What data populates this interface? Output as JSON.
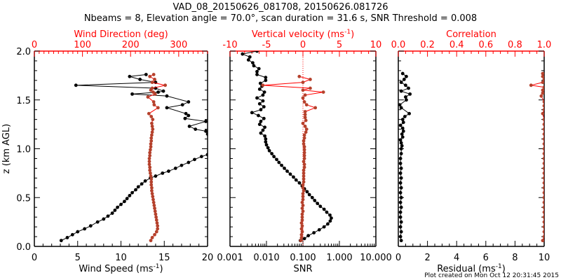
{
  "header": {
    "title": "VAD_08_20150626_081708, 20150626.081726",
    "subtitle": "Nbeams = 8, Elevation angle = 70.0°, scan duration = 31.6 s, SNR Threshold = 0.008"
  },
  "footer": {
    "created": "Plot created on Mon Oct 12 20:31:45 2015"
  },
  "colors": {
    "axis_red": "#ff0000",
    "series_red": "#b5412c",
    "series_black": "#000000"
  },
  "chart_data": [
    {
      "type": "line",
      "id": "wind",
      "title": "",
      "ylabel": "z (km AGL)",
      "ylim": [
        0,
        2.0
      ],
      "yticks": [
        "0.0",
        "0.5",
        "1.0",
        "1.5",
        "2.0"
      ],
      "xlabel": "Wind Speed (ms",
      "xlabel_sup": "-1",
      "xlabel_tail": ")",
      "xlim": [
        0,
        20
      ],
      "xticks": [
        "0",
        "5",
        "10",
        "15",
        "20"
      ],
      "top_xlabel": "Wind Direction (deg)",
      "top_xlim": [
        0,
        360
      ],
      "top_xticks": [
        "0",
        "100",
        "200",
        "300"
      ],
      "series": [
        {
          "name": "Wind Speed",
          "axis": "bottom",
          "color": "black",
          "z": [
            0.06,
            0.09,
            0.12,
            0.15,
            0.18,
            0.21,
            0.25,
            0.28,
            0.31,
            0.34,
            0.37,
            0.4,
            0.43,
            0.46,
            0.49,
            0.52,
            0.55,
            0.58,
            0.61,
            0.64,
            0.67,
            0.7,
            0.72,
            0.75,
            0.77,
            0.8,
            0.83,
            0.86,
            0.89,
            0.92,
            0.94,
            1.15,
            1.18,
            1.2,
            1.23,
            1.28,
            1.31,
            1.34,
            1.36,
            1.42,
            1.45,
            1.48,
            1.54,
            1.56,
            1.58,
            1.59,
            1.62,
            1.65,
            1.68,
            1.71,
            1.74,
            1.76
          ],
          "values": [
            3.1,
            3.8,
            4.4,
            5.0,
            5.8,
            6.5,
            7.3,
            8.0,
            8.5,
            9.0,
            9.3,
            9.6,
            10.0,
            10.4,
            10.7,
            11.0,
            11.3,
            11.7,
            12.0,
            12.4,
            12.8,
            13.4,
            14.0,
            14.8,
            15.5,
            16.3,
            17.0,
            17.8,
            18.5,
            19.3,
            20.0,
            20.0,
            19.8,
            18.6,
            17.9,
            19.8,
            17.4,
            17.8,
            17.5,
            15.3,
            17.1,
            17.8,
            15.3,
            11.3,
            14.3,
            14.9,
            14.0,
            4.8,
            14.0,
            12.2,
            11.0,
            12.9
          ]
        },
        {
          "name": "Wind Direction",
          "axis": "top",
          "color": "red",
          "z": [
            0.06,
            0.09,
            0.12,
            0.15,
            0.18,
            0.21,
            0.24,
            0.27,
            0.3,
            0.33,
            0.36,
            0.39,
            0.42,
            0.45,
            0.48,
            0.51,
            0.54,
            0.57,
            0.6,
            0.63,
            0.66,
            0.69,
            0.72,
            0.75,
            0.78,
            0.81,
            0.84,
            0.87,
            0.9,
            0.93,
            0.96,
            0.99,
            1.02,
            1.05,
            1.08,
            1.11,
            1.14,
            1.17,
            1.2,
            1.23,
            1.26,
            1.3,
            1.33,
            1.36,
            1.42,
            1.45,
            1.48,
            1.53,
            1.56,
            1.58,
            1.6,
            1.62,
            1.65,
            1.68,
            1.71,
            1.74,
            1.76
          ],
          "values": [
            242,
            245,
            250,
            254,
            256,
            256,
            255,
            254,
            253,
            252,
            251,
            250,
            249,
            248,
            247,
            246,
            245,
            244,
            244,
            243,
            243,
            243,
            242,
            241,
            240,
            240,
            239,
            239,
            239,
            240,
            240,
            241,
            242,
            242,
            243,
            243,
            244,
            245,
            246,
            245,
            244,
            246,
            243,
            238,
            257,
            249,
            248,
            236,
            251,
            247,
            242,
            245,
            272,
            245,
            250,
            240,
            248
          ]
        }
      ]
    },
    {
      "type": "line",
      "id": "snr",
      "xlabel": "SNR",
      "xscale": "log",
      "xlim": [
        0.001,
        10.0
      ],
      "xticks": [
        "0.001",
        "0.010",
        "0.100",
        "1.000",
        "10.000"
      ],
      "top_xlabel": "Vertical velocity (ms",
      "top_xlabel_sup": "-1",
      "top_xlabel_tail": ")",
      "top_xlim": [
        -10,
        10
      ],
      "top_xticks": [
        "-10",
        "-5",
        "0",
        "5",
        "10"
      ],
      "ylim": [
        0,
        2.0
      ],
      "series": [
        {
          "name": "SNR",
          "axis": "bottom",
          "color": "black",
          "z": [
            0.06,
            0.08,
            0.11,
            0.14,
            0.17,
            0.2,
            0.23,
            0.26,
            0.29,
            0.32,
            0.35,
            0.38,
            0.41,
            0.44,
            0.47,
            0.5,
            0.53,
            0.56,
            0.59,
            0.62,
            0.65,
            0.68,
            0.71,
            0.74,
            0.77,
            0.8,
            0.83,
            0.86,
            0.89,
            0.92,
            0.95,
            0.98,
            1.01,
            1.04,
            1.07,
            1.1,
            1.13,
            1.16,
            1.19,
            1.22,
            1.25,
            1.28,
            1.31,
            1.34,
            1.37,
            1.4,
            1.43,
            1.46,
            1.49,
            1.52,
            1.55,
            1.58,
            1.61,
            1.64,
            1.67,
            1.7,
            1.73,
            1.76,
            1.79,
            1.82,
            1.85,
            1.88,
            1.91,
            1.94,
            1.97,
            2.0
          ],
          "values": [
            0.085,
            0.11,
            0.14,
            0.2,
            0.28,
            0.38,
            0.48,
            0.56,
            0.6,
            0.55,
            0.45,
            0.38,
            0.3,
            0.25,
            0.21,
            0.18,
            0.15,
            0.13,
            0.11,
            0.095,
            0.08,
            0.065,
            0.055,
            0.045,
            0.037,
            0.031,
            0.026,
            0.022,
            0.019,
            0.016,
            0.014,
            0.012,
            0.011,
            0.01,
            0.0095,
            0.0095,
            0.009,
            0.007,
            0.008,
            0.009,
            0.0065,
            0.007,
            0.0085,
            0.006,
            0.004,
            0.007,
            0.0085,
            0.0065,
            0.008,
            0.0055,
            0.008,
            0.0088,
            0.0065,
            0.0075,
            0.0068,
            0.0095,
            0.0095,
            0.0055,
            0.0055,
            0.0062,
            0.0045,
            0.0042,
            0.0032,
            0.0035,
            0.0022,
            0.0055
          ]
        },
        {
          "name": "Vertical velocity",
          "axis": "top",
          "color": "red",
          "z": [
            0.06,
            0.09,
            0.12,
            0.15,
            0.18,
            0.21,
            0.24,
            0.27,
            0.3,
            0.33,
            0.36,
            0.39,
            0.42,
            0.45,
            0.48,
            0.51,
            0.54,
            0.57,
            0.6,
            0.63,
            0.66,
            0.69,
            0.72,
            0.75,
            0.78,
            0.81,
            0.84,
            0.87,
            0.9,
            0.93,
            0.96,
            0.99,
            1.02,
            1.05,
            1.08,
            1.11,
            1.14,
            1.17,
            1.2,
            1.23,
            1.26,
            1.29,
            1.32,
            1.35,
            1.38,
            1.42,
            1.45,
            1.48,
            1.52,
            1.55,
            1.58,
            1.6,
            1.62,
            1.65,
            1.68,
            1.71,
            1.74
          ],
          "values": [
            -0.3,
            -0.2,
            -0.2,
            -0.1,
            -0.2,
            -0.1,
            -0.2,
            -0.1,
            -0.1,
            -0.1,
            0.0,
            -0.1,
            0.0,
            -0.1,
            0.0,
            0.0,
            0.0,
            0.1,
            0.0,
            0.0,
            0.1,
            0.1,
            0.1,
            0.1,
            0.1,
            0.2,
            0.2,
            0.1,
            0.2,
            0.2,
            0.2,
            0.2,
            0.2,
            0.1,
            0.1,
            0.2,
            0.2,
            0.4,
            0.5,
            0.3,
            0.0,
            0.4,
            0.3,
            0.3,
            0.3,
            1.7,
            0.5,
            0.2,
            0.0,
            0.3,
            2.8,
            0.0,
            1.0,
            -5.5,
            0.0,
            1.0,
            -0.5
          ]
        }
      ]
    },
    {
      "type": "line",
      "id": "residual",
      "xlabel": "Residual (ms",
      "xlabel_sup": "-1",
      "xlabel_tail": ")",
      "xlim": [
        0,
        10
      ],
      "xticks": [
        "0",
        "2",
        "4",
        "6",
        "8",
        "10"
      ],
      "top_xlabel": "Correlation",
      "top_xlim": [
        0.0,
        1.0
      ],
      "top_xticks": [
        "0.0",
        "0.2",
        "0.4",
        "0.6",
        "0.8",
        "1.0"
      ],
      "ylim": [
        0,
        2.0
      ],
      "series": [
        {
          "name": "Residual",
          "axis": "bottom",
          "color": "black",
          "z": [
            0.06,
            0.1,
            0.15,
            0.2,
            0.25,
            0.3,
            0.35,
            0.4,
            0.45,
            0.5,
            0.55,
            0.6,
            0.65,
            0.7,
            0.75,
            0.8,
            0.85,
            0.9,
            0.95,
            1.0,
            1.03,
            1.06,
            1.09,
            1.12,
            1.15,
            1.18,
            1.21,
            1.24,
            1.27,
            1.3,
            1.33,
            1.36,
            1.42,
            1.45,
            1.5,
            1.53,
            1.56,
            1.59,
            1.62,
            1.65,
            1.68,
            1.71,
            1.74,
            1.77
          ],
          "values": [
            0.2,
            0.15,
            0.2,
            0.15,
            0.2,
            0.15,
            0.15,
            0.2,
            0.15,
            0.2,
            0.15,
            0.2,
            0.15,
            0.2,
            0.15,
            0.2,
            0.15,
            0.15,
            0.2,
            0.2,
            0.25,
            0.2,
            0.15,
            0.3,
            0.25,
            0.35,
            0.3,
            0.15,
            0.35,
            0.3,
            0.45,
            0.75,
            0.2,
            0.1,
            0.55,
            0.5,
            0.8,
            0.2,
            0.7,
            0.5,
            0.2,
            0.4,
            0.55,
            0.3
          ]
        },
        {
          "name": "Correlation",
          "axis": "top",
          "color": "red",
          "z": [
            0.06,
            0.1,
            0.15,
            0.2,
            0.25,
            0.3,
            0.35,
            0.4,
            0.45,
            0.5,
            0.55,
            0.6,
            0.65,
            0.7,
            0.75,
            0.8,
            0.85,
            0.9,
            0.95,
            1.0,
            1.05,
            1.1,
            1.15,
            1.2,
            1.25,
            1.3,
            1.36,
            1.4,
            1.44,
            1.48,
            1.54,
            1.57,
            1.6,
            1.63,
            1.65,
            1.68,
            1.71,
            1.74,
            1.77
          ],
          "values": [
            0.99,
            1.0,
            1.0,
            1.0,
            1.0,
            1.0,
            1.0,
            1.0,
            1.0,
            1.0,
            1.0,
            1.0,
            1.0,
            1.0,
            1.0,
            1.0,
            1.0,
            1.0,
            1.0,
            1.0,
            1.0,
            1.0,
            1.0,
            1.0,
            1.0,
            1.0,
            0.99,
            1.0,
            1.0,
            1.0,
            0.98,
            0.99,
            0.99,
            1.0,
            0.91,
            0.99,
            1.0,
            0.99,
            0.99
          ]
        }
      ]
    }
  ]
}
